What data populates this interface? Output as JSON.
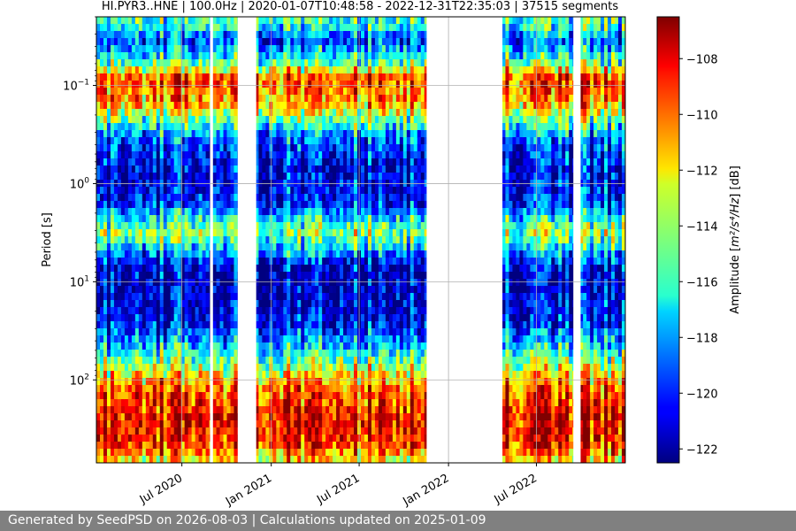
{
  "chart_data": {
    "type": "heatmap",
    "title": "HI.PYR3..HNE | 100.0Hz | 2020-01-07T10:48:58 - 2022-12-31T22:35:03 | 37515 segments",
    "ylabel": "Period [s]",
    "yscale": "log",
    "yaxis_inverted": true,
    "ylim": [
      0.02,
      700
    ],
    "y_ticks": [
      {
        "value": 0.1,
        "base": "10",
        "exp": "−1"
      },
      {
        "value": 1,
        "base": "10",
        "exp": "0"
      },
      {
        "value": 10,
        "base": "10",
        "exp": "1"
      },
      {
        "value": 100,
        "base": "10",
        "exp": "2"
      }
    ],
    "x_range": [
      "2020-01-07",
      "2022-12-31"
    ],
    "x_ticks": [
      {
        "date": "2020-07-01",
        "label": "Jul 2020"
      },
      {
        "date": "2021-01-01",
        "label": "Jan 2021"
      },
      {
        "date": "2021-07-01",
        "label": "Jul 2021"
      },
      {
        "date": "2022-01-01",
        "label": "Jan 2022"
      },
      {
        "date": "2022-07-01",
        "label": "Jul 2022"
      }
    ],
    "data_gaps": [
      [
        "2020-08-28",
        "2020-09-03"
      ],
      [
        "2020-10-24",
        "2020-12-01"
      ],
      [
        "2021-11-17",
        "2022-04-22"
      ],
      [
        "2022-09-15",
        "2022-09-30"
      ]
    ],
    "grid": true,
    "colorbar": {
      "label_prefix": "Amplitude [",
      "label_units": "m²/s⁴/Hz",
      "label_suffix": "] [dB]",
      "colormap": "jet",
      "range": [
        -122.5,
        -106.5
      ],
      "ticks": [
        {
          "value": -108,
          "label": "−108"
        },
        {
          "value": -110,
          "label": "−110"
        },
        {
          "value": -112,
          "label": "−112"
        },
        {
          "value": -114,
          "label": "−114"
        },
        {
          "value": -116,
          "label": "−116"
        },
        {
          "value": -118,
          "label": "−118"
        },
        {
          "value": -120,
          "label": "−120"
        },
        {
          "value": -122,
          "label": "−122"
        }
      ]
    }
  },
  "footer": {
    "text": "Generated by SeedPSD on 2026-08-03 | Calculations updated on 2025-01-09"
  }
}
